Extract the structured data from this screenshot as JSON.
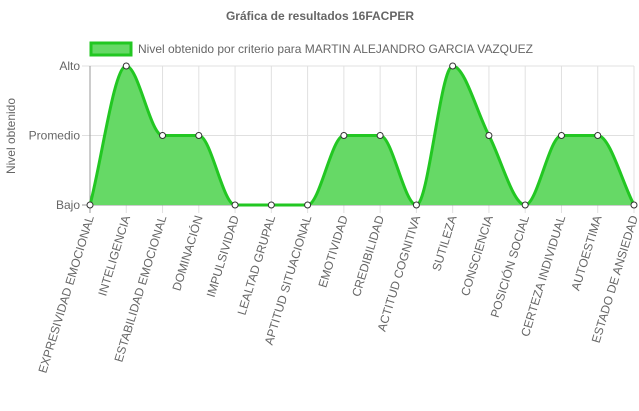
{
  "chart_data": {
    "type": "area",
    "title": "Gráfica de resultados 16FACPER",
    "ylabel": "Nivel obtenido",
    "xlabel": "",
    "y_levels": [
      "Bajo",
      "Promedio",
      "Alto"
    ],
    "ylim": [
      0,
      2
    ],
    "grid": true,
    "legend_position": "top",
    "categories": [
      "EXPRESIVIDAD EMOCIONAL",
      "INTELIGENCIA",
      "ESTABILIDAD EMOCIONAL",
      "DOMINACIÓN",
      "IMPULSIVIDAD",
      "LEALTAD GRUPAL",
      "APTITUD SITUACIONAL",
      "EMOTIVIDAD",
      "CREDIBILIDAD",
      "ACTITUD COGNITIVA",
      "SUTILEZA",
      "CONSCIENCIA",
      "POSICIÓN SOCIAL",
      "CERTEZA INDIVIDUAL",
      "AUTOESTIMA",
      "ESTADO DE ANSIEDAD"
    ],
    "series": [
      {
        "name": "Nivel obtenido por criterio para MARTIN ALEJANDRO GARCIA VAZQUEZ",
        "values": [
          0,
          2,
          1,
          1,
          0,
          0,
          0,
          1,
          1,
          0,
          2,
          1,
          0,
          1,
          1,
          0
        ]
      }
    ],
    "colors": {
      "fill": "#66d966",
      "stroke": "#22c722",
      "point_fill": "#ffffff",
      "point_stroke": "#333333",
      "grid": "#e0e0e0",
      "axis": "#999999",
      "text": "#666666"
    }
  }
}
